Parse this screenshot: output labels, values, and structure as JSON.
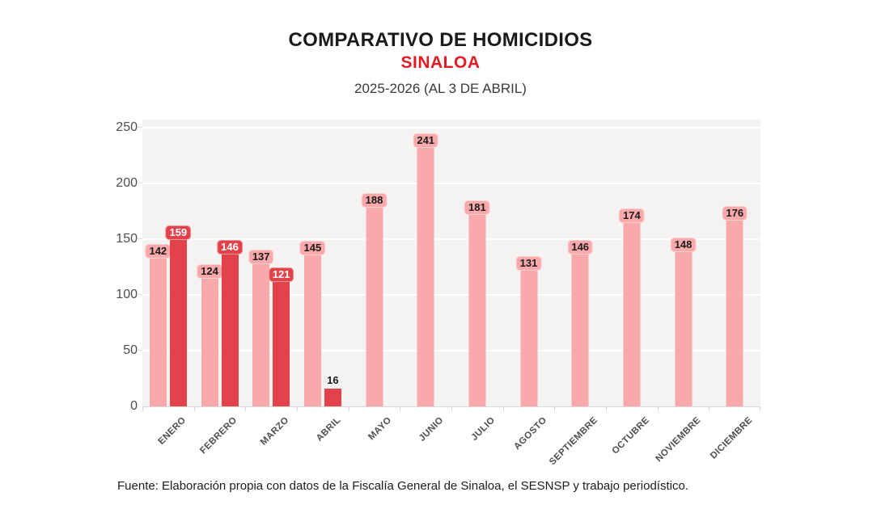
{
  "header": {
    "title": "COMPARATIVO DE HOMICIDIOS",
    "subtitle": "SINALOA",
    "period": "2025-2026 (AL 3 DE ABRIL)"
  },
  "footer": {
    "source": "Fuente: Elaboración propia con datos de la Fiscalía General de Sinaloa, el SESNSP y trabajo periodístico."
  },
  "colors": {
    "title": "#1a1a1a",
    "subtitle_red": "#e21b23",
    "plot_background": "#f4f3f1",
    "series_2025": "#f9a9ab",
    "series_2026": "#e2434b",
    "label_on_pink": "#1a1a1a",
    "label_on_red": "#ffffff",
    "axis_text": "#4d4d4d"
  },
  "chart_data": {
    "type": "bar",
    "title": "COMPARATIVO DE HOMICIDIOS",
    "subtitle": "SINALOA",
    "period_note": "2025-2026 (AL 3 DE ABRIL)",
    "xlabel": "",
    "ylabel": "",
    "ylim": [
      0,
      250
    ],
    "yticks": [
      0,
      50,
      100,
      150,
      200,
      250
    ],
    "grid": "horizontal",
    "legend": "none",
    "categories": [
      "ENERO",
      "FEBRERO",
      "MARZO",
      "ABRIL",
      "MAYO",
      "JUNIO",
      "JULIO",
      "AGOSTO",
      "SEPTIEMBRE",
      "OCTUBRE",
      "NOVIEMBRE",
      "DICIEMBRE"
    ],
    "series": [
      {
        "name": "2025",
        "color": "#f9a9ab",
        "label_color": "#1a1a1a",
        "values": [
          142,
          124,
          137,
          145,
          188,
          241,
          181,
          131,
          146,
          174,
          148,
          176
        ]
      },
      {
        "name": "2026",
        "color": "#e2434b",
        "label_color": "#ffffff",
        "values": [
          159,
          146,
          121,
          16,
          null,
          null,
          null,
          null,
          null,
          null,
          null,
          null
        ]
      }
    ]
  }
}
